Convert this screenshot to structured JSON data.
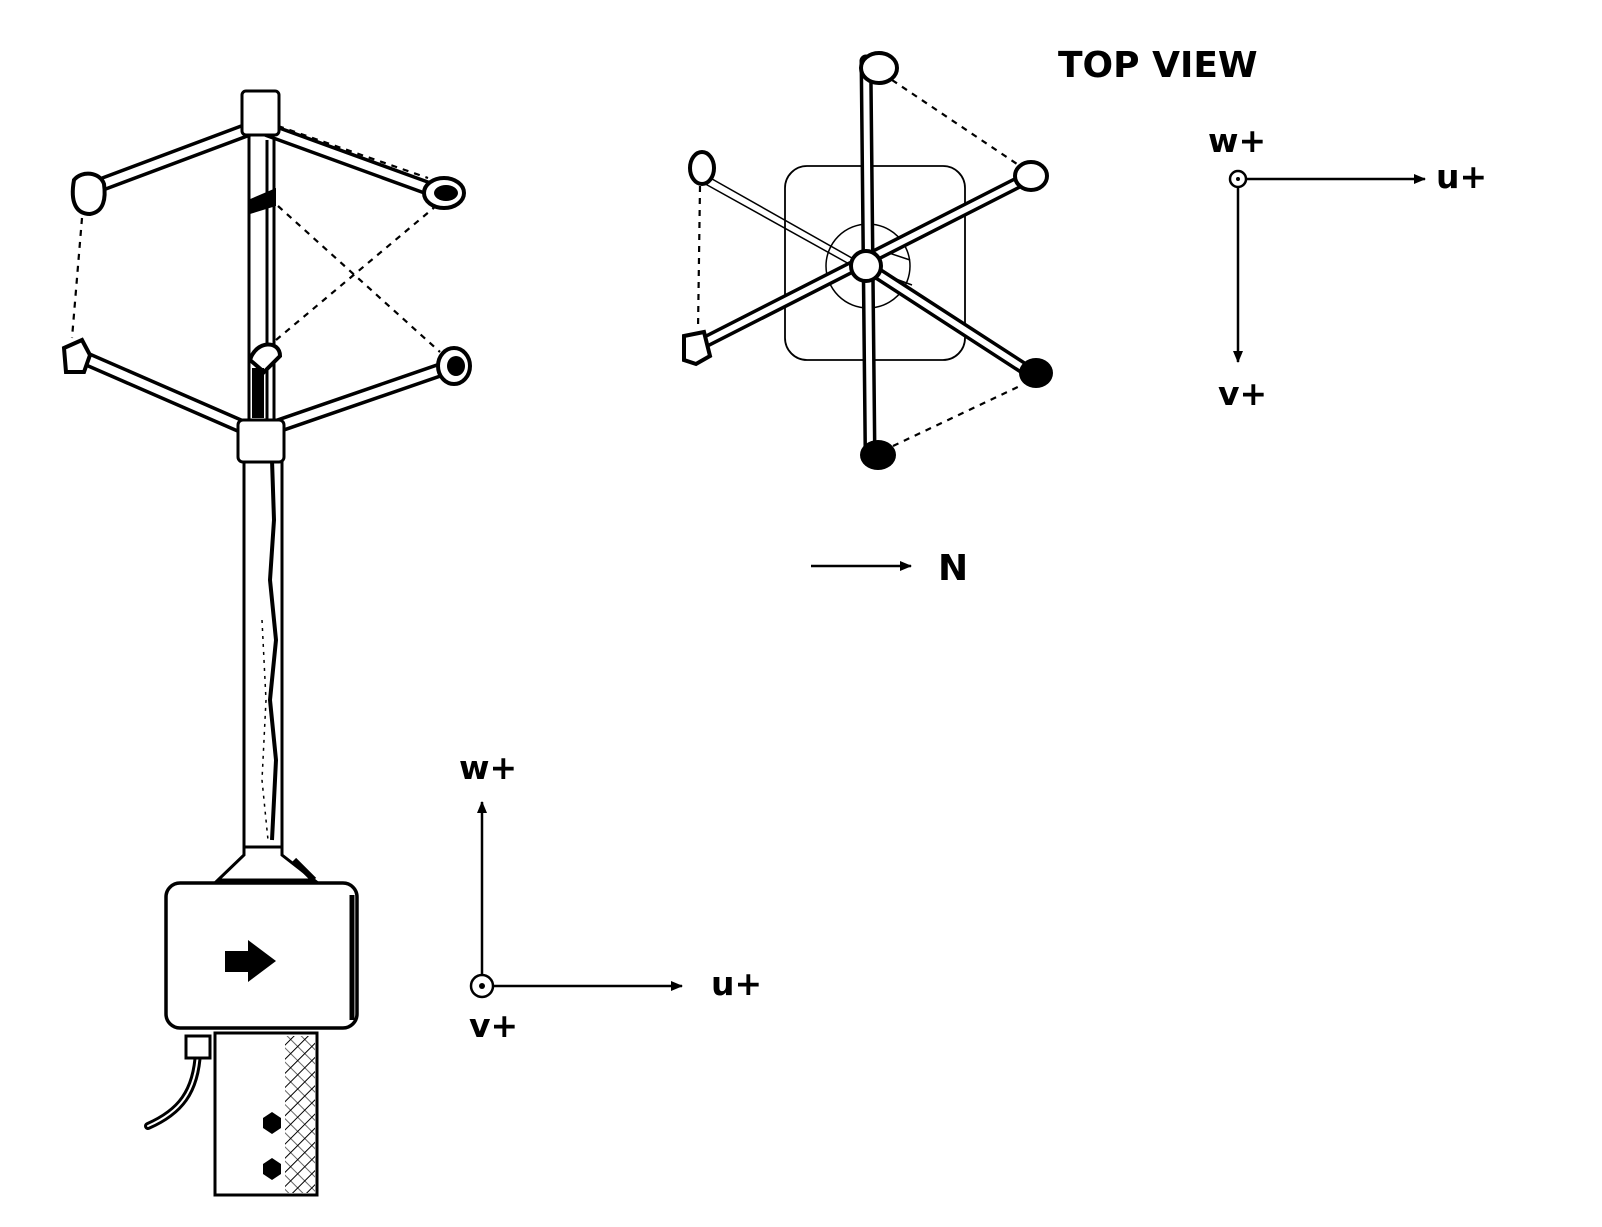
{
  "labels": {
    "top_view": "TOP VIEW",
    "top_w": "w+",
    "top_u": "u+",
    "top_v": "v+",
    "north": "N",
    "side_w": "w+",
    "side_u": "u+",
    "side_v": "v+"
  },
  "colors": {
    "ink": "#000000",
    "paper": "#ffffff"
  },
  "icons": {
    "box_arrow": "right-arrow-icon"
  }
}
